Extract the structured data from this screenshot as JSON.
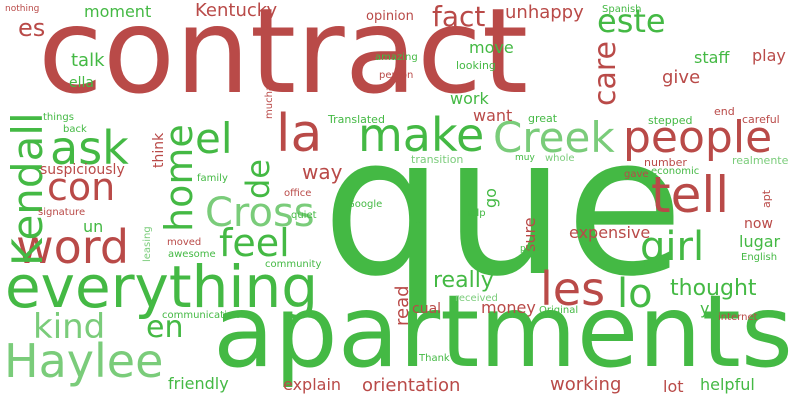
{
  "colors": {
    "red": "#b94a48",
    "green": "#44b944",
    "light_green": "#7acc7a"
  },
  "words": [
    {
      "text": "contract",
      "color": "red"
    },
    {
      "text": "que",
      "color": "green"
    },
    {
      "text": "apartments",
      "color": "green"
    },
    {
      "text": "everything",
      "color": "green"
    },
    {
      "text": "word",
      "color": "red"
    },
    {
      "text": "Haylee",
      "color": "light_green"
    },
    {
      "text": "Kendall",
      "color": "green"
    },
    {
      "text": "make",
      "color": "green"
    },
    {
      "text": "la",
      "color": "red"
    },
    {
      "text": "ask",
      "color": "green"
    },
    {
      "text": "el",
      "color": "green"
    },
    {
      "text": "home",
      "color": "green"
    },
    {
      "text": "con",
      "color": "red"
    },
    {
      "text": "de",
      "color": "green"
    },
    {
      "text": "Creek",
      "color": "light_green"
    },
    {
      "text": "people",
      "color": "red"
    },
    {
      "text": "tell",
      "color": "red"
    },
    {
      "text": "Cross",
      "color": "light_green"
    },
    {
      "text": "feel",
      "color": "green"
    },
    {
      "text": "girl",
      "color": "green"
    },
    {
      "text": "les",
      "color": "red"
    },
    {
      "text": "lo",
      "color": "green"
    },
    {
      "text": "kind",
      "color": "light_green"
    },
    {
      "text": "en",
      "color": "green"
    },
    {
      "text": "fact",
      "color": "red"
    },
    {
      "text": "este",
      "color": "green"
    },
    {
      "text": "care",
      "color": "red"
    },
    {
      "text": "Kentucky",
      "color": "red"
    },
    {
      "text": "unhappy",
      "color": "red"
    },
    {
      "text": "moment",
      "color": "green"
    },
    {
      "text": "es",
      "color": "red"
    },
    {
      "text": "talk",
      "color": "green"
    },
    {
      "text": "ella",
      "color": "green"
    },
    {
      "text": "opinion",
      "color": "red"
    },
    {
      "text": "Spanish",
      "color": "green"
    },
    {
      "text": "nothing",
      "color": "red"
    },
    {
      "text": "move",
      "color": "green"
    },
    {
      "text": "looking",
      "color": "green"
    },
    {
      "text": "staff",
      "color": "green"
    },
    {
      "text": "play",
      "color": "red"
    },
    {
      "text": "give",
      "color": "red"
    },
    {
      "text": "amazing",
      "color": "green"
    },
    {
      "text": "person",
      "color": "red"
    },
    {
      "text": "mucha",
      "color": "red"
    },
    {
      "text": "work",
      "color": "green"
    },
    {
      "text": "want",
      "color": "red"
    },
    {
      "text": "great",
      "color": "green"
    },
    {
      "text": "end",
      "color": "red"
    },
    {
      "text": "careful",
      "color": "red"
    },
    {
      "text": "things",
      "color": "green"
    },
    {
      "text": "back",
      "color": "green"
    },
    {
      "text": "think",
      "color": "red"
    },
    {
      "text": "Translated",
      "color": "green"
    },
    {
      "text": "stepped",
      "color": "green"
    },
    {
      "text": "transition",
      "color": "light_green"
    },
    {
      "text": "muy",
      "color": "green"
    },
    {
      "text": "whole",
      "color": "light_green"
    },
    {
      "text": "number",
      "color": "red"
    },
    {
      "text": "realmente",
      "color": "light_green"
    },
    {
      "text": "suspiciously",
      "color": "red"
    },
    {
      "text": "way",
      "color": "red"
    },
    {
      "text": "economic",
      "color": "green"
    },
    {
      "text": "gave",
      "color": "red"
    },
    {
      "text": "family",
      "color": "green"
    },
    {
      "text": "office",
      "color": "red"
    },
    {
      "text": "signature",
      "color": "red"
    },
    {
      "text": "go",
      "color": "green"
    },
    {
      "text": "apt",
      "color": "red"
    },
    {
      "text": "un",
      "color": "green"
    },
    {
      "text": "Google",
      "color": "green"
    },
    {
      "text": "quiet",
      "color": "green"
    },
    {
      "text": "mi",
      "color": "green"
    },
    {
      "text": "help",
      "color": "green"
    },
    {
      "text": "leasing",
      "color": "light_green"
    },
    {
      "text": "sure",
      "color": "red"
    },
    {
      "text": "expensive",
      "color": "red"
    },
    {
      "text": "now",
      "color": "red"
    },
    {
      "text": "moved",
      "color": "red"
    },
    {
      "text": "awesome",
      "color": "green"
    },
    {
      "text": "para",
      "color": "green"
    },
    {
      "text": "lugar",
      "color": "green"
    },
    {
      "text": "English",
      "color": "green"
    },
    {
      "text": "community",
      "color": "green"
    },
    {
      "text": "really",
      "color": "green"
    },
    {
      "text": "thought",
      "color": "green"
    },
    {
      "text": "read",
      "color": "red"
    },
    {
      "text": "money",
      "color": "red"
    },
    {
      "text": "cual",
      "color": "red"
    },
    {
      "text": "received",
      "color": "light_green"
    },
    {
      "text": "Original",
      "color": "green"
    },
    {
      "text": "y",
      "color": "green"
    },
    {
      "text": "internet",
      "color": "red"
    },
    {
      "text": "communication",
      "color": "green"
    },
    {
      "text": "Thank",
      "color": "green"
    },
    {
      "text": "friendly",
      "color": "green"
    },
    {
      "text": "explain",
      "color": "red"
    },
    {
      "text": "orientation",
      "color": "red"
    },
    {
      "text": "working",
      "color": "red"
    },
    {
      "text": "lot",
      "color": "red"
    },
    {
      "text": "helpful",
      "color": "green"
    }
  ]
}
